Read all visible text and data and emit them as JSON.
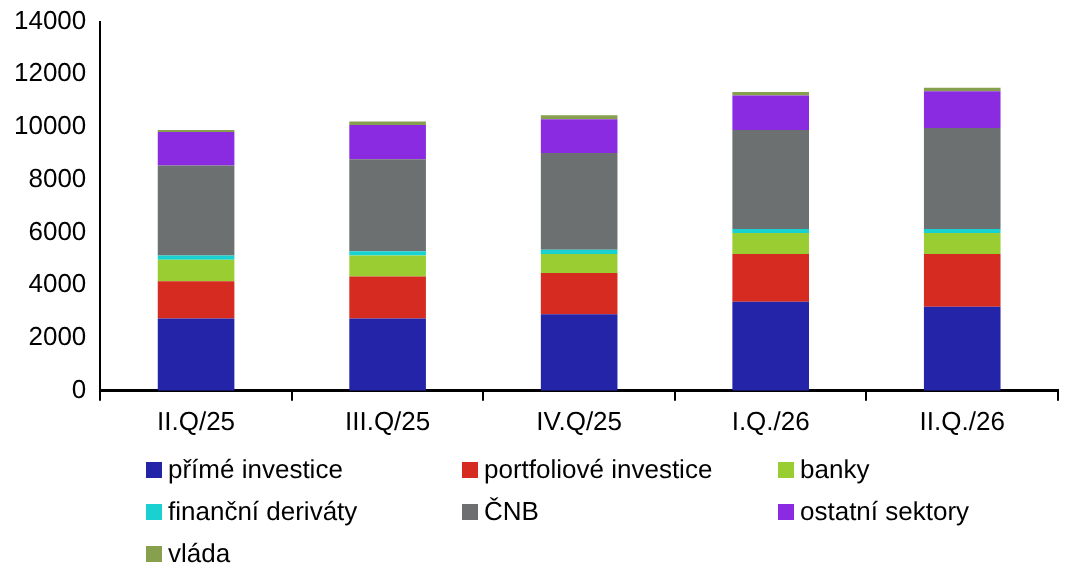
{
  "chart_data": {
    "type": "bar",
    "stacked": true,
    "categories": [
      "II.Q/25",
      "III.Q/25",
      "IV.Q/25",
      "I.Q./26",
      "II.Q./26"
    ],
    "ylim": [
      0,
      14000
    ],
    "yticks": [
      0,
      2000,
      4000,
      6000,
      8000,
      10000,
      12000,
      14000
    ],
    "grid": false,
    "legend": "bottom",
    "series": [
      {
        "name": "přímé investice",
        "color": "#2424a8",
        "values": [
          2740,
          2740,
          2900,
          3380,
          3190
        ]
      },
      {
        "name": "portfoliové investice",
        "color": "#d62b20",
        "values": [
          1410,
          1595,
          1570,
          1810,
          2000
        ]
      },
      {
        "name": "banky",
        "color": "#9acd32",
        "values": [
          820,
          795,
          720,
          790,
          790
        ]
      },
      {
        "name": "finanční deriváty",
        "color": "#1ad1d1",
        "values": [
          160,
          160,
          160,
          160,
          160
        ]
      },
      {
        "name": "ČNB",
        "color": "#6d7070",
        "values": [
          3410,
          3490,
          3670,
          3750,
          3830
        ]
      },
      {
        "name": "ostatní sektory",
        "color": "#8a2be2",
        "values": [
          1270,
          1300,
          1280,
          1310,
          1390
        ]
      },
      {
        "name": "vláda",
        "color": "#86a04e",
        "values": [
          80,
          130,
          150,
          130,
          130
        ]
      }
    ]
  }
}
